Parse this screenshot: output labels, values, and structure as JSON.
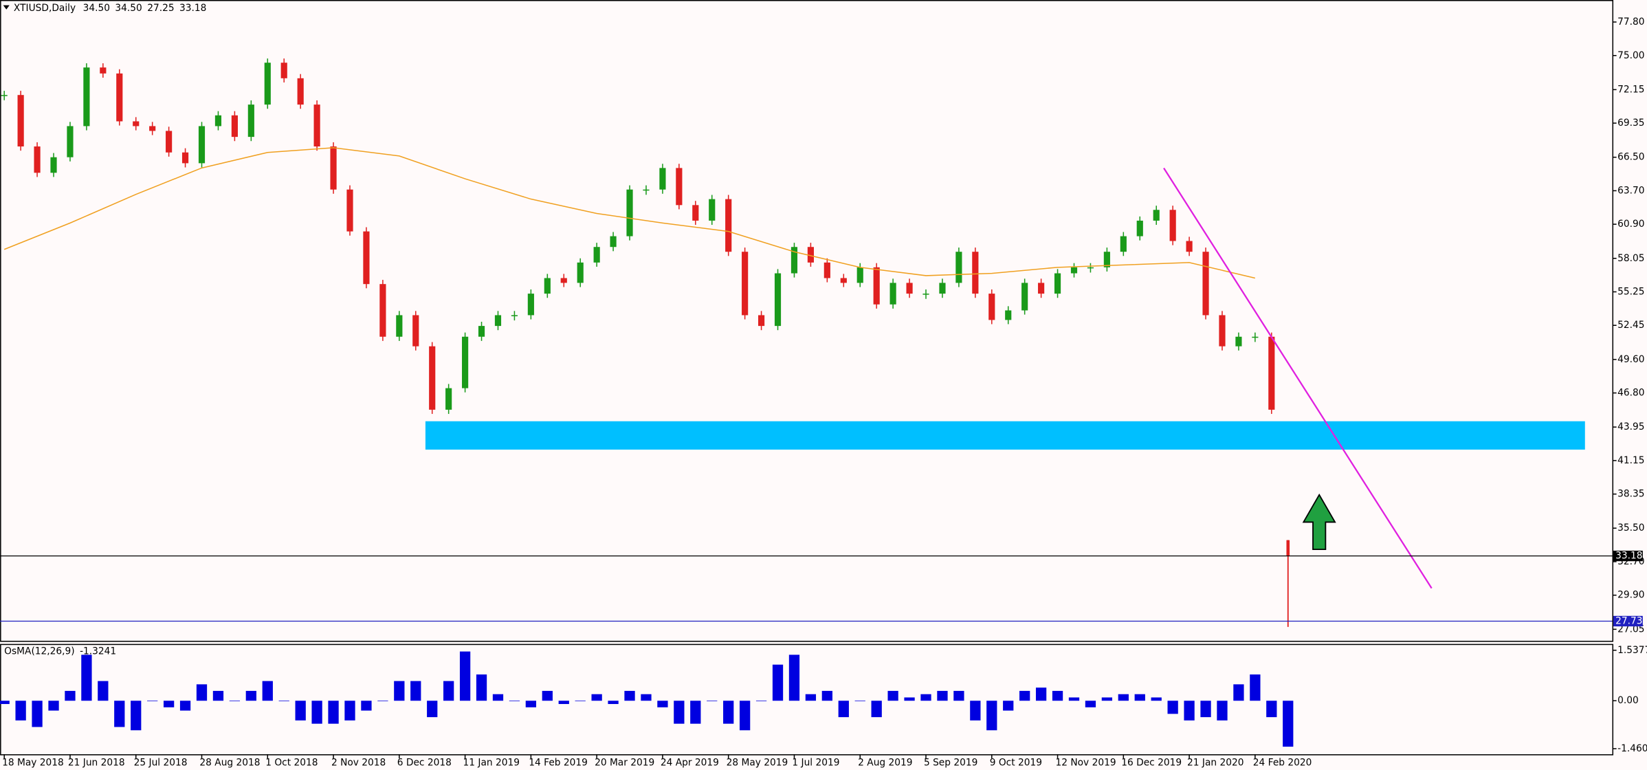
{
  "chart_data": {
    "type": "candlestick",
    "title": "XTIUSD,Daily",
    "ohlc": [
      {
        "value": 34.5,
        "label": "34.50"
      },
      {
        "value": 34.5,
        "label": "34.50"
      },
      27.25,
      33.18
    ],
    "categories": [
      "18 May 2018",
      "21 Jun 2018",
      "25 Jul 2018",
      "28 Aug 2018",
      "1 Oct 2018",
      "2 Nov 2018",
      "6 Dec 2018",
      "11 Jan 2019",
      "14 Feb 2019",
      "20 Mar 2019",
      "24 Apr 2019",
      "28 May 2019",
      "1 Jul 2019",
      "2 Aug 2019",
      "5 Sep 2019",
      "9 Oct 2019",
      "12 Nov 2019",
      "16 Dec 2019",
      "21 Jan 2020",
      "24 Feb 2020"
    ],
    "closes": [
      71.7,
      67.4,
      65.2,
      66.5,
      69.1,
      74.0,
      73.5,
      69.5,
      69.1,
      68.7,
      66.9,
      66.0,
      69.1,
      70.0,
      68.2,
      70.9,
      74.4,
      73.1,
      70.9,
      67.4,
      63.8,
      60.3,
      55.9,
      51.5,
      53.3,
      50.7,
      45.4,
      47.2,
      51.5,
      52.4,
      53.3,
      53.3,
      55.1,
      56.4,
      56.0,
      57.7,
      59.0,
      59.9,
      63.8,
      63.8,
      65.6,
      62.5,
      61.2,
      63.0,
      58.6,
      53.3,
      52.4,
      56.8,
      59.0,
      57.7,
      56.4,
      56.0,
      57.3,
      54.2,
      56.0,
      55.1,
      55.1,
      56.0,
      58.6,
      55.1,
      52.9,
      53.7,
      56.0,
      55.1,
      56.8,
      57.3,
      57.3,
      58.6,
      59.9,
      61.2,
      62.1,
      59.5,
      58.6,
      53.3,
      50.7,
      51.5,
      51.5,
      45.4
    ],
    "up_color": "#1a9a1a",
    "down_color": "#e02020",
    "moving_average": [
      58.8,
      61.0,
      63.4,
      65.6,
      66.9,
      67.3,
      66.6,
      64.7,
      63.0,
      61.8,
      61.0,
      60.3,
      58.6,
      57.3,
      56.6,
      56.8,
      57.3,
      57.5,
      57.7,
      56.4
    ],
    "ma_color": "#f0a020",
    "ylim": [
      26.0,
      79.64
    ],
    "yticks": [
      {
        "value": 77.8,
        "label": "77.80"
      },
      {
        "value": 75,
        "label": "75.00"
      },
      72.15,
      69.35,
      {
        "value": 66.5,
        "label": "66.50"
      },
      {
        "value": 63.7,
        "label": "63.70"
      },
      {
        "value": 60.9,
        "label": "60.90"
      },
      58.05,
      55.25,
      52.45,
      {
        "value": 49.6,
        "label": "49.60"
      },
      {
        "value": 46.8,
        "label": "46.80"
      },
      43.95,
      41.15,
      38.35,
      {
        "value": 35.5,
        "label": "35.50"
      },
      {
        "value": 32.7,
        "label": "32.70"
      },
      {
        "value": 29.9,
        "label": "29.90"
      },
      27.05
    ],
    "level": 27.73,
    "osma_title": "OsMA(12,26,9)",
    "osma_current": -1.3241,
    "osma": [
      -0.1,
      -0.6,
      -0.8,
      -0.3,
      0.3,
      1.4,
      0.6,
      -0.8,
      -0.9,
      0.0,
      -0.2,
      -0.3,
      0.5,
      0.3,
      0.0,
      0.3,
      0.6,
      0.0,
      -0.6,
      -0.7,
      -0.7,
      -0.6,
      -0.3,
      0.0,
      0.6,
      0.6,
      -0.5,
      0.6,
      1.5,
      0.8,
      0.2,
      0.0,
      -0.2,
      0.3,
      -0.1,
      0.0,
      0.2,
      -0.1,
      0.3,
      0.2,
      -0.2,
      -0.7,
      -0.7,
      0.0,
      -0.7,
      -0.9,
      0.0,
      1.1,
      1.4,
      0.2,
      0.3,
      -0.5,
      0.0,
      -0.5,
      0.3,
      0.1,
      0.2,
      0.3,
      0.3,
      -0.6,
      -0.9,
      -0.3,
      0.3,
      0.4,
      0.3,
      0.1,
      -0.2,
      0.1,
      0.2,
      0.2,
      0.1,
      -0.4,
      -0.6,
      -0.5,
      -0.6,
      0.5,
      0.8,
      -0.5,
      -1.4
    ],
    "osma_color": "#0000e0",
    "osma_ylim": [
      -1.63,
      1.73
    ],
    "osma_yticks": [
      1.5377,
      {
        "value": 0,
        "label": "0.00"
      },
      -1.4604
    ]
  }
}
